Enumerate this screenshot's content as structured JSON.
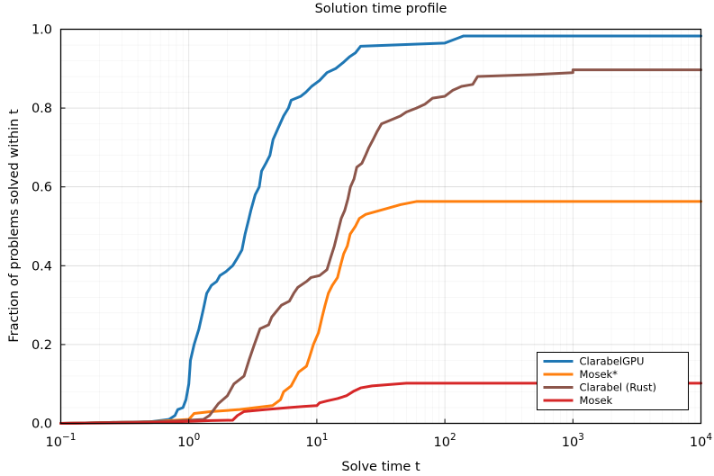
{
  "chart_data": {
    "type": "line",
    "title": "Solution time profile",
    "xlabel": "Solve time t",
    "ylabel": "Fraction of problems solved within t",
    "xscale": "log10",
    "xlim": [
      0.1,
      10000
    ],
    "ylim": [
      0,
      1
    ],
    "grid": true,
    "legend_position": "bottom-right",
    "x_ticks": [
      {
        "value": 0.1,
        "base": "10",
        "exp": "−1"
      },
      {
        "value": 1,
        "base": "10",
        "exp": "0"
      },
      {
        "value": 10,
        "base": "10",
        "exp": "1"
      },
      {
        "value": 100,
        "base": "10",
        "exp": "2"
      },
      {
        "value": 1000,
        "base": "10",
        "exp": "3"
      },
      {
        "value": 10000,
        "base": "10",
        "exp": "4"
      }
    ],
    "y_ticks": [
      {
        "value": 0.0,
        "label": "0.0"
      },
      {
        "value": 0.2,
        "label": "0.2"
      },
      {
        "value": 0.4,
        "label": "0.4"
      },
      {
        "value": 0.6,
        "label": "0.6"
      },
      {
        "value": 0.8,
        "label": "0.8"
      },
      {
        "value": 1.0,
        "label": "1.0"
      }
    ],
    "series": [
      {
        "name": "ClarabelGPU",
        "color": "#1f77b4",
        "points": [
          [
            0.1,
            0
          ],
          [
            0.5,
            0.004
          ],
          [
            0.7,
            0.01
          ],
          [
            0.78,
            0.02
          ],
          [
            0.82,
            0.035
          ],
          [
            0.9,
            0.04
          ],
          [
            0.95,
            0.06
          ],
          [
            1.0,
            0.1
          ],
          [
            1.03,
            0.16
          ],
          [
            1.1,
            0.2
          ],
          [
            1.2,
            0.24
          ],
          [
            1.3,
            0.29
          ],
          [
            1.38,
            0.33
          ],
          [
            1.5,
            0.35
          ],
          [
            1.65,
            0.36
          ],
          [
            1.75,
            0.375
          ],
          [
            1.95,
            0.385
          ],
          [
            2.2,
            0.4
          ],
          [
            2.4,
            0.42
          ],
          [
            2.6,
            0.44
          ],
          [
            2.75,
            0.48
          ],
          [
            2.95,
            0.52
          ],
          [
            3.05,
            0.54
          ],
          [
            3.3,
            0.58
          ],
          [
            3.55,
            0.6
          ],
          [
            3.7,
            0.64
          ],
          [
            4.0,
            0.66
          ],
          [
            4.3,
            0.68
          ],
          [
            4.55,
            0.72
          ],
          [
            5.0,
            0.75
          ],
          [
            5.5,
            0.78
          ],
          [
            6.0,
            0.8
          ],
          [
            6.3,
            0.82
          ],
          [
            7.5,
            0.83
          ],
          [
            8.2,
            0.84
          ],
          [
            9.1,
            0.855
          ],
          [
            10.5,
            0.87
          ],
          [
            12.0,
            0.89
          ],
          [
            14.0,
            0.9
          ],
          [
            16.0,
            0.915
          ],
          [
            18.0,
            0.93
          ],
          [
            20.0,
            0.94
          ],
          [
            22.0,
            0.957
          ],
          [
            100,
            0.965
          ],
          [
            140,
            0.983
          ],
          [
            10000,
            0.983
          ]
        ]
      },
      {
        "name": "Mosek*",
        "color": "#ff7f0e",
        "points": [
          [
            0.1,
            0
          ],
          [
            0.5,
            0.004
          ],
          [
            1.0,
            0.01
          ],
          [
            1.1,
            0.025
          ],
          [
            1.5,
            0.03
          ],
          [
            2.5,
            0.035
          ],
          [
            4.5,
            0.045
          ],
          [
            5.2,
            0.06
          ],
          [
            5.5,
            0.08
          ],
          [
            6.3,
            0.095
          ],
          [
            7.2,
            0.13
          ],
          [
            8.3,
            0.145
          ],
          [
            8.8,
            0.17
          ],
          [
            9.4,
            0.2
          ],
          [
            10.3,
            0.23
          ],
          [
            11.0,
            0.27
          ],
          [
            11.6,
            0.3
          ],
          [
            12.3,
            0.33
          ],
          [
            13.2,
            0.35
          ],
          [
            14.5,
            0.37
          ],
          [
            15.3,
            0.4
          ],
          [
            16.2,
            0.43
          ],
          [
            17.3,
            0.45
          ],
          [
            18.2,
            0.48
          ],
          [
            20.0,
            0.5
          ],
          [
            21.5,
            0.52
          ],
          [
            24.0,
            0.53
          ],
          [
            35.0,
            0.545
          ],
          [
            45.0,
            0.555
          ],
          [
            60.0,
            0.563
          ],
          [
            10000,
            0.563
          ]
        ]
      },
      {
        "name": "Clarabel (Rust)",
        "color": "#8c564b",
        "points": [
          [
            0.1,
            0
          ],
          [
            0.7,
            0.005
          ],
          [
            1.3,
            0.01
          ],
          [
            1.45,
            0.02
          ],
          [
            1.7,
            0.05
          ],
          [
            2.0,
            0.07
          ],
          [
            2.25,
            0.1
          ],
          [
            2.7,
            0.12
          ],
          [
            2.95,
            0.16
          ],
          [
            3.25,
            0.2
          ],
          [
            3.6,
            0.24
          ],
          [
            4.2,
            0.25
          ],
          [
            4.45,
            0.27
          ],
          [
            5.3,
            0.3
          ],
          [
            6.1,
            0.31
          ],
          [
            6.6,
            0.33
          ],
          [
            7.1,
            0.345
          ],
          [
            8.3,
            0.36
          ],
          [
            9.0,
            0.37
          ],
          [
            10.5,
            0.375
          ],
          [
            12.0,
            0.39
          ],
          [
            12.8,
            0.42
          ],
          [
            13.7,
            0.45
          ],
          [
            14.7,
            0.49
          ],
          [
            15.5,
            0.52
          ],
          [
            16.5,
            0.54
          ],
          [
            17.5,
            0.57
          ],
          [
            18.3,
            0.6
          ],
          [
            19.5,
            0.62
          ],
          [
            20.5,
            0.65
          ],
          [
            22.5,
            0.66
          ],
          [
            24.0,
            0.68
          ],
          [
            25.5,
            0.7
          ],
          [
            27.5,
            0.72
          ],
          [
            29.5,
            0.74
          ],
          [
            32.0,
            0.76
          ],
          [
            38.0,
            0.77
          ],
          [
            45.0,
            0.78
          ],
          [
            50.0,
            0.79
          ],
          [
            60.0,
            0.8
          ],
          [
            70.0,
            0.81
          ],
          [
            80.0,
            0.825
          ],
          [
            100,
            0.83
          ],
          [
            115,
            0.845
          ],
          [
            135,
            0.855
          ],
          [
            165,
            0.86
          ],
          [
            180,
            0.88
          ],
          [
            500,
            0.885
          ],
          [
            1000,
            0.89
          ],
          [
            1000,
            0.897
          ],
          [
            10000,
            0.897
          ]
        ]
      },
      {
        "name": "Mosek",
        "color": "#d62728",
        "points": [
          [
            0.1,
            0
          ],
          [
            0.5,
            0.002
          ],
          [
            1.0,
            0.005
          ],
          [
            1.5,
            0.007
          ],
          [
            2.2,
            0.008
          ],
          [
            2.4,
            0.02
          ],
          [
            2.7,
            0.03
          ],
          [
            4.0,
            0.035
          ],
          [
            6.0,
            0.04
          ],
          [
            8.0,
            0.043
          ],
          [
            10.0,
            0.045
          ],
          [
            10.5,
            0.052
          ],
          [
            12.0,
            0.057
          ],
          [
            14.5,
            0.063
          ],
          [
            17.0,
            0.07
          ],
          [
            19.5,
            0.082
          ],
          [
            22.0,
            0.09
          ],
          [
            27.0,
            0.095
          ],
          [
            35.0,
            0.098
          ],
          [
            50.0,
            0.102
          ],
          [
            10000,
            0.102
          ]
        ]
      }
    ]
  }
}
